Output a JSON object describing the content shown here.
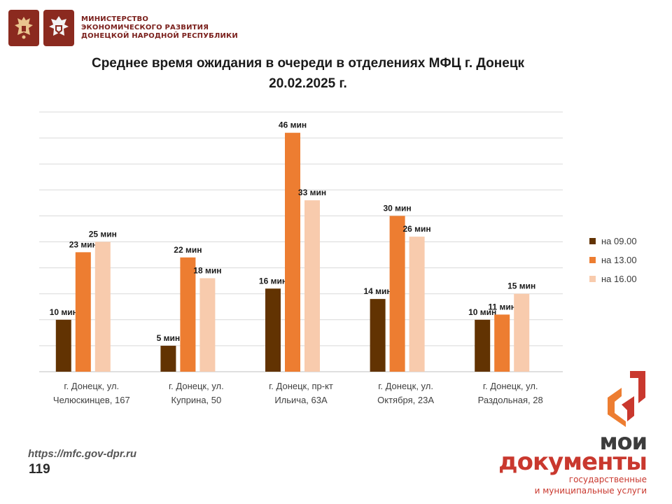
{
  "header": {
    "ministry_lines": [
      "МИНИСТЕРСТВО",
      "ЭКОНОМИЧЕСКОГО РАЗВИТИЯ",
      "ДОНЕЦКОЙ НАРОДНОЙ РЕСПУБЛИКИ"
    ],
    "emblem_icons": [
      "russia-coat-of-arms-icon",
      "dpr-coat-of-arms-icon"
    ]
  },
  "chart_data": {
    "type": "bar",
    "title": "Среднее время ожидания в очереди в отделениях МФЦ г. Донецк",
    "subtitle": "20.02.2025 г.",
    "categories": [
      [
        "г. Донецк, ул.",
        "Челюскинцев, 167"
      ],
      [
        "г. Донецк, ул.",
        "Куприна, 50"
      ],
      [
        "г. Донецк, пр-кт",
        "Ильича, 63А"
      ],
      [
        "г. Донецк, ул.",
        "Октября, 23А"
      ],
      [
        "г. Донецк, ул.",
        "Раздольная, 28"
      ]
    ],
    "series": [
      {
        "name": "на 09.00",
        "color": "#623302",
        "values": [
          10,
          5,
          16,
          14,
          10
        ]
      },
      {
        "name": "на 13.00",
        "color": "#ED7D31",
        "values": [
          23,
          22,
          46,
          30,
          11
        ]
      },
      {
        "name": "на 16.00",
        "color": "#F8CBAD",
        "values": [
          25,
          18,
          33,
          26,
          15
        ]
      }
    ],
    "value_suffix": " мин",
    "ylim": [
      0,
      50
    ],
    "grid": true,
    "legend_position": "right"
  },
  "footer": {
    "url": "https://mfc.gov-dpr.ru",
    "page_number": "119"
  },
  "brand": {
    "line1": "мои",
    "line2": "документы",
    "line3": "государственные",
    "line4": "и муниципальные услуги",
    "colors": {
      "red": "#c9382e",
      "orange": "#ED7D31",
      "gray": "#3c3c3c"
    }
  }
}
